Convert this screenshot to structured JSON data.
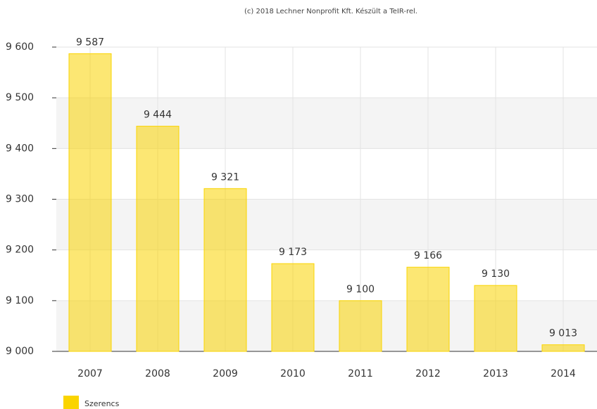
{
  "chart_data": {
    "type": "bar",
    "subtitle": "(c) 2018 Lechner Nonprofit Kft. Készült a TeIR-rel.",
    "categories": [
      "2007",
      "2008",
      "2009",
      "2010",
      "2011",
      "2012",
      "2013",
      "2014"
    ],
    "series": [
      {
        "name": "Szerencs",
        "color": "#fad400",
        "values": [
          9587,
          9444,
          9321,
          9173,
          9100,
          9166,
          9130,
          9013
        ],
        "value_labels": [
          "9 587",
          "9 444",
          "9 321",
          "9 173",
          "9 100",
          "9 166",
          "9 130",
          "9 013"
        ]
      }
    ],
    "ylim": [
      9000,
      9600
    ],
    "yticks": [
      {
        "value": 9000,
        "label": "9 000"
      },
      {
        "value": 9100,
        "label": "9 100"
      },
      {
        "value": 9200,
        "label": "9 200"
      },
      {
        "value": 9300,
        "label": "9 300"
      },
      {
        "value": 9400,
        "label": "9 400"
      },
      {
        "value": 9500,
        "label": "9 500"
      },
      {
        "value": 9600,
        "label": "9 600"
      }
    ],
    "grid": true,
    "legend": "bottom-left"
  }
}
